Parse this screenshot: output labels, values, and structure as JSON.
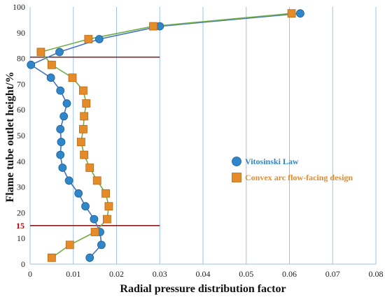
{
  "chart_data": {
    "type": "scatter",
    "xlabel": "Radial pressure distribution factor",
    "ylabel": "Flame tube outlet height/%",
    "xlim": [
      0,
      0.08
    ],
    "ylim": [
      0,
      100
    ],
    "x_ticks": [
      "0",
      "0.01",
      "0.02",
      "0.03",
      "0.04",
      "0.05",
      "0.06",
      "0.07",
      "0.08"
    ],
    "y_ticks": [
      "0",
      "10",
      "20",
      "30",
      "40",
      "50",
      "60",
      "70",
      "80",
      "90",
      "100"
    ],
    "grid": "vertical",
    "legend_position": "right",
    "series": [
      {
        "name": "Vitosinski Law",
        "color": "#2f86c8",
        "line_color": "#4472c4",
        "marker": "circle",
        "points": [
          [
            0.0138,
            2.5
          ],
          [
            0.0165,
            7.5
          ],
          [
            0.0162,
            12.5
          ],
          [
            0.0148,
            17.5
          ],
          [
            0.0128,
            22.5
          ],
          [
            0.0112,
            27.5
          ],
          [
            0.009,
            32.5
          ],
          [
            0.0075,
            37.5
          ],
          [
            0.007,
            42.5
          ],
          [
            0.0072,
            47.5
          ],
          [
            0.007,
            52.5
          ],
          [
            0.0078,
            57.5
          ],
          [
            0.0085,
            62.5
          ],
          [
            0.007,
            67.5
          ],
          [
            0.0048,
            72.5
          ],
          [
            0.0002,
            77.5
          ],
          [
            0.0068,
            82.5
          ],
          [
            0.016,
            87.5
          ],
          [
            0.03,
            92.5
          ],
          [
            0.0625,
            97.5
          ]
        ]
      },
      {
        "name": "Convex arc flow-facing design",
        "color": "#e58b2a",
        "line_color": "#70ad47",
        "marker": "square",
        "points": [
          [
            0.005,
            2.5
          ],
          [
            0.0092,
            7.5
          ],
          [
            0.015,
            12.5
          ],
          [
            0.0178,
            17.5
          ],
          [
            0.0182,
            22.5
          ],
          [
            0.0175,
            27.5
          ],
          [
            0.0155,
            32.5
          ],
          [
            0.0138,
            37.5
          ],
          [
            0.0125,
            42.5
          ],
          [
            0.0118,
            47.5
          ],
          [
            0.0123,
            52.5
          ],
          [
            0.0125,
            57.5
          ],
          [
            0.013,
            62.5
          ],
          [
            0.0123,
            67.5
          ],
          [
            0.0098,
            72.5
          ],
          [
            0.005,
            77.5
          ],
          [
            0.0025,
            82.5
          ],
          [
            0.0135,
            87.5
          ],
          [
            0.0285,
            92.5
          ],
          [
            0.0605,
            97.5
          ]
        ]
      }
    ],
    "reference_lines": [
      {
        "label": "",
        "y": 80.5,
        "x_end": 0.03
      },
      {
        "label": "15",
        "y": 15,
        "x_end": 0.03
      }
    ]
  }
}
